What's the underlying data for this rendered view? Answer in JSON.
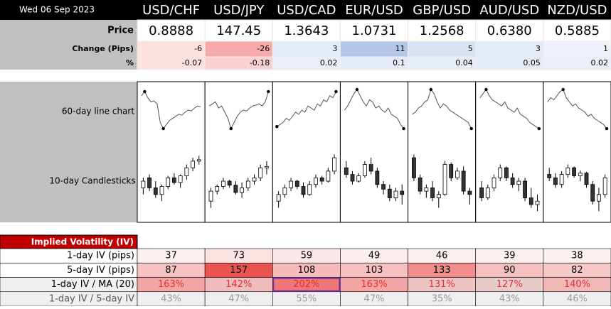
{
  "date": "Wed 06 Sep 2023",
  "pairs": [
    "USD/CHF",
    "USD/JPY",
    "USD/CAD",
    "EUR/USD",
    "GBP/USD",
    "AUD/USD",
    "NZD/USD"
  ],
  "price": {
    "label": "Price",
    "values": [
      "0.8888",
      "147.45",
      "1.3643",
      "1.0731",
      "1.2568",
      "0.6380",
      "0.5885"
    ]
  },
  "change": {
    "label": "Change (Pips)",
    "values": [
      -6,
      -26,
      3,
      11,
      5,
      3,
      1
    ],
    "colors": [
      "#fde1e1",
      "#f8a9a9",
      "#e4ebf6",
      "#b4c6e7",
      "#d9e2f2",
      "#e4ebf6",
      "#eef2f9"
    ]
  },
  "percent": {
    "label": "%",
    "values": [
      -0.07,
      -0.18,
      0.02,
      0.1,
      0.04,
      0.05,
      0.02
    ],
    "colors": [
      "#fde1e1",
      "#fbd0d0",
      "#eaeff8",
      "#e4ebf6",
      "#e8eef7",
      "#e6ecf7",
      "#eaeff8"
    ]
  },
  "line_charts": {
    "label": "60-day line chart",
    "series": [
      [
        85,
        95,
        80,
        70,
        72,
        65,
        20,
        5,
        15,
        25,
        30,
        35,
        40,
        38,
        45,
        50,
        48,
        55,
        60,
        58
      ],
      [
        60,
        65,
        70,
        55,
        60,
        45,
        30,
        5,
        20,
        35,
        45,
        50,
        48,
        55,
        60,
        62,
        65,
        60,
        70,
        95
      ],
      [
        10,
        15,
        20,
        30,
        25,
        35,
        45,
        40,
        50,
        45,
        60,
        55,
        50,
        65,
        60,
        75,
        70,
        85,
        80,
        95
      ],
      [
        50,
        60,
        75,
        90,
        100,
        85,
        70,
        60,
        75,
        70,
        55,
        60,
        50,
        45,
        55,
        40,
        35,
        30,
        15,
        5
      ],
      [
        40,
        45,
        55,
        60,
        70,
        75,
        100,
        90,
        70,
        55,
        65,
        60,
        50,
        45,
        40,
        35,
        30,
        25,
        20,
        5
      ],
      [
        80,
        90,
        100,
        85,
        75,
        70,
        65,
        60,
        70,
        55,
        50,
        45,
        55,
        40,
        35,
        30,
        20,
        15,
        10,
        5
      ],
      [
        70,
        80,
        75,
        85,
        95,
        100,
        80,
        70,
        60,
        65,
        55,
        50,
        45,
        35,
        40,
        30,
        25,
        20,
        15,
        5
      ]
    ]
  },
  "candles": {
    "label": "10-day Candlesticks",
    "series": [
      [
        [
          40,
          55,
          30,
          50
        ],
        [
          55,
          60,
          35,
          40
        ],
        [
          40,
          50,
          25,
          30
        ],
        [
          30,
          45,
          20,
          42
        ],
        [
          42,
          58,
          38,
          55
        ],
        [
          55,
          62,
          45,
          48
        ],
        [
          48,
          60,
          40,
          58
        ],
        [
          58,
          75,
          52,
          70
        ],
        [
          70,
          85,
          65,
          80
        ],
        [
          80,
          88,
          75,
          82
        ]
      ],
      [
        [
          20,
          40,
          10,
          35
        ],
        [
          35,
          45,
          30,
          42
        ],
        [
          42,
          55,
          38,
          50
        ],
        [
          50,
          52,
          40,
          44
        ],
        [
          44,
          50,
          30,
          33
        ],
        [
          33,
          48,
          25,
          40
        ],
        [
          40,
          55,
          35,
          50
        ],
        [
          50,
          60,
          45,
          55
        ],
        [
          55,
          75,
          50,
          70
        ],
        [
          70,
          80,
          60,
          72
        ]
      ],
      [
        [
          20,
          35,
          10,
          30
        ],
        [
          30,
          45,
          25,
          40
        ],
        [
          40,
          55,
          35,
          50
        ],
        [
          50,
          52,
          38,
          42
        ],
        [
          42,
          48,
          25,
          30
        ],
        [
          30,
          50,
          28,
          45
        ],
        [
          45,
          60,
          40,
          55
        ],
        [
          55,
          58,
          45,
          50
        ],
        [
          50,
          70,
          48,
          65
        ],
        [
          65,
          90,
          60,
          85
        ]
      ],
      [
        [
          70,
          80,
          55,
          60
        ],
        [
          60,
          65,
          45,
          50
        ],
        [
          50,
          62,
          48,
          58
        ],
        [
          58,
          80,
          55,
          75
        ],
        [
          75,
          85,
          60,
          65
        ],
        [
          65,
          70,
          40,
          45
        ],
        [
          45,
          50,
          30,
          38
        ],
        [
          38,
          45,
          20,
          25
        ],
        [
          25,
          40,
          20,
          35
        ],
        [
          35,
          45,
          15,
          30
        ]
      ],
      [
        [
          85,
          90,
          50,
          55
        ],
        [
          55,
          60,
          30,
          35
        ],
        [
          35,
          45,
          25,
          40
        ],
        [
          40,
          50,
          20,
          25
        ],
        [
          25,
          35,
          10,
          30
        ],
        [
          30,
          80,
          28,
          75
        ],
        [
          75,
          78,
          50,
          55
        ],
        [
          55,
          70,
          52,
          65
        ],
        [
          65,
          72,
          30,
          35
        ],
        [
          35,
          40,
          15,
          30
        ]
      ],
      [
        [
          40,
          50,
          20,
          25
        ],
        [
          25,
          45,
          22,
          40
        ],
        [
          40,
          60,
          35,
          55
        ],
        [
          55,
          75,
          50,
          70
        ],
        [
          70,
          72,
          50,
          55
        ],
        [
          55,
          62,
          40,
          45
        ],
        [
          45,
          55,
          35,
          50
        ],
        [
          50,
          55,
          20,
          25
        ],
        [
          25,
          40,
          10,
          15
        ],
        [
          15,
          30,
          5,
          20
        ]
      ],
      [
        [
          60,
          70,
          50,
          55
        ],
        [
          55,
          62,
          40,
          45
        ],
        [
          45,
          65,
          40,
          60
        ],
        [
          60,
          75,
          55,
          70
        ],
        [
          70,
          72,
          55,
          58
        ],
        [
          58,
          66,
          50,
          62
        ],
        [
          62,
          64,
          40,
          45
        ],
        [
          45,
          50,
          15,
          20
        ],
        [
          20,
          40,
          5,
          30
        ],
        [
          30,
          60,
          25,
          55
        ]
      ]
    ]
  },
  "iv": {
    "title": "Implied Volatility (IV)",
    "rows": [
      {
        "label": "1-day IV (pips)",
        "values": [
          37,
          73,
          59,
          49,
          46,
          39,
          38
        ],
        "colors": [
          "#fdf0f0",
          "#fbe3e3",
          "#fce8e8",
          "#fdeeee",
          "#fdf0f0",
          "#fdf1f1",
          "#fdf1f1"
        ],
        "text_color": "#000000"
      },
      {
        "label": "5-day IV (pips)",
        "values": [
          87,
          157,
          108,
          103,
          133,
          90,
          82
        ],
        "colors": [
          "#f6c3c3",
          "#e8534f",
          "#f5baba",
          "#f6c0c0",
          "#ee8d8c",
          "#f5c0c0",
          "#f7c8c8"
        ],
        "text_color": "#000000"
      },
      {
        "label": "1-day IV / MA (20)",
        "values": [
          "163%",
          "142%",
          "202%",
          "163%",
          "131%",
          "127%",
          "140%"
        ],
        "colors": [
          "#f3a5a5",
          "#f1bcbc",
          "#ef7777",
          "#f3a5a5",
          "#ecc2c2",
          "#e8cccc",
          "#f1b8b8"
        ],
        "text_color": "#e03030"
      },
      {
        "label": "1-day IV / 5-day IV",
        "values": [
          "43%",
          "47%",
          "55%",
          "47%",
          "35%",
          "43%",
          "46%"
        ],
        "colors": [
          "#efefef",
          "#efefef",
          "#efefef",
          "#efefef",
          "#efefef",
          "#efefef",
          "#efefef"
        ],
        "text_color": "#999999"
      }
    ]
  }
}
